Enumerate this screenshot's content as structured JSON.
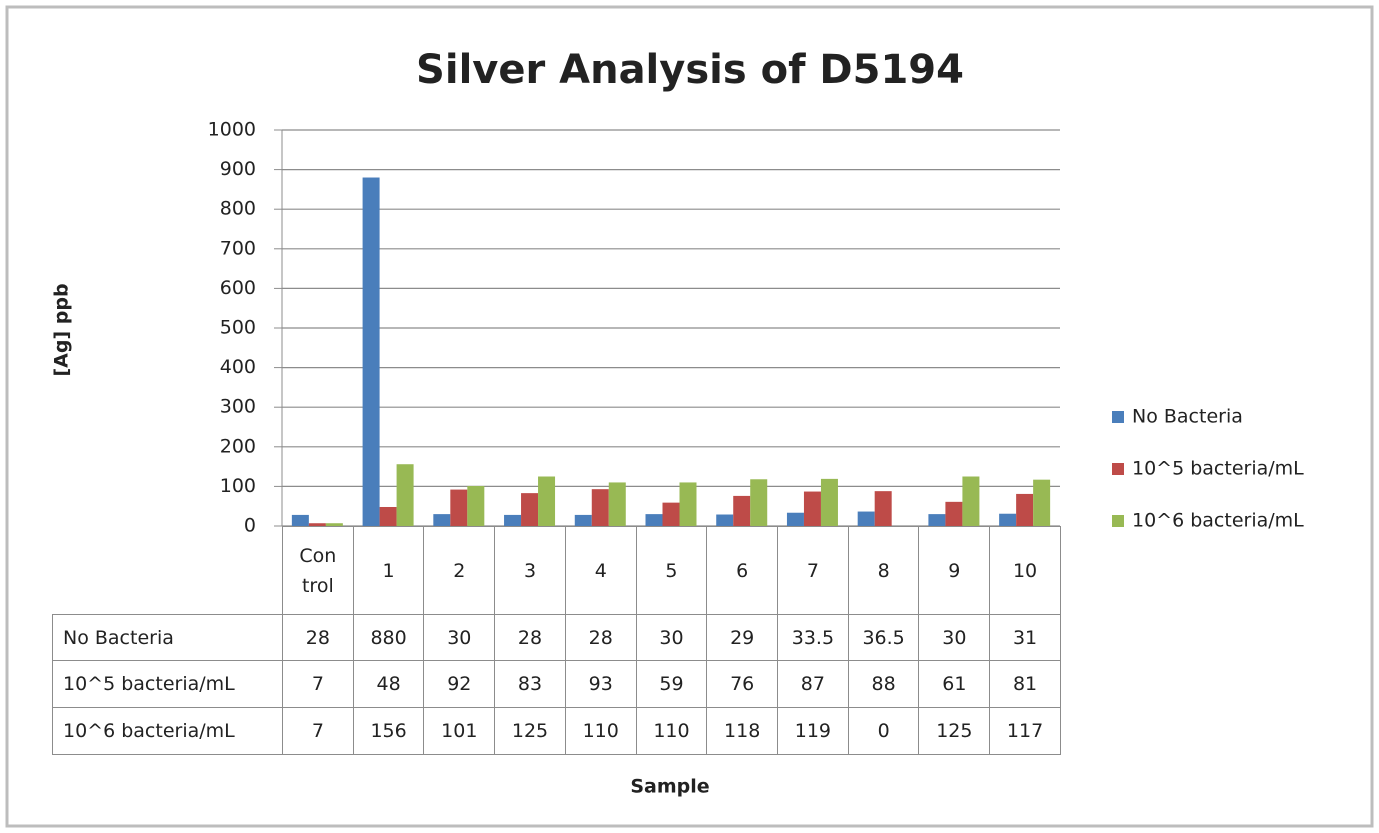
{
  "chart_data": {
    "type": "bar",
    "title": "Silver Analysis of D5194",
    "y_label": "[Ag] ppb",
    "x_label": "Sample",
    "categories": [
      "Control",
      "1",
      "2",
      "3",
      "4",
      "5",
      "6",
      "7",
      "8",
      "9",
      "10"
    ],
    "series": [
      {
        "name": "No Bacteria",
        "color": "#4a7ebb",
        "values": [
          28,
          880,
          30,
          28,
          28,
          30,
          29,
          33.5,
          36.5,
          30,
          31
        ]
      },
      {
        "name": "10^5 bacteria/mL",
        "color": "#be4b48",
        "values": [
          7,
          48,
          92,
          83,
          93,
          59,
          76,
          87,
          88,
          61,
          81
        ]
      },
      {
        "name": "10^6 bacteria/mL",
        "color": "#98b954",
        "values": [
          7,
          156,
          101,
          125,
          110,
          110,
          118,
          119,
          0,
          125,
          117
        ]
      }
    ],
    "ylim": [
      0,
      1000
    ],
    "yticks": [
      0,
      100,
      200,
      300,
      400,
      500,
      600,
      700,
      800,
      900,
      1000
    ],
    "grid": true,
    "legend": "right"
  }
}
